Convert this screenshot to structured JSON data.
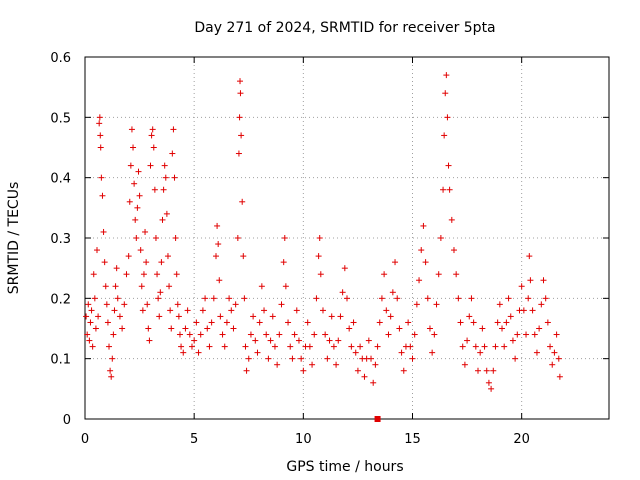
{
  "chart_data": {
    "type": "scatter",
    "title": "Day 271 of 2024, SRMTID for receiver 5pta",
    "xlabel": "GPS time / hours",
    "ylabel": "SRMTID / TECUs",
    "xlim": [
      0,
      24
    ],
    "ylim": [
      0,
      0.6
    ],
    "xticks": [
      0,
      5,
      10,
      15,
      20
    ],
    "xtick_labels": [
      "0",
      "5",
      "10",
      "15",
      "20"
    ],
    "yticks": [
      0,
      0.1,
      0.2,
      0.3,
      0.4,
      0.5,
      0.6
    ],
    "ytick_labels": [
      "0",
      "0.1",
      "0.2",
      "0.3",
      "0.4",
      "0.5",
      "0.6"
    ],
    "grid": true,
    "marker": "+",
    "color": "#e00000",
    "series": [
      {
        "name": "SRMTID",
        "points": [
          [
            0.05,
            0.17
          ],
          [
            0.1,
            0.14
          ],
          [
            0.15,
            0.19
          ],
          [
            0.2,
            0.13
          ],
          [
            0.25,
            0.16
          ],
          [
            0.3,
            0.18
          ],
          [
            0.35,
            0.12
          ],
          [
            0.4,
            0.24
          ],
          [
            0.45,
            0.2
          ],
          [
            0.5,
            0.15
          ],
          [
            0.55,
            0.28
          ],
          [
            0.6,
            0.17
          ],
          [
            0.65,
            0.49
          ],
          [
            0.68,
            0.5
          ],
          [
            0.7,
            0.47
          ],
          [
            0.72,
            0.45
          ],
          [
            0.75,
            0.4
          ],
          [
            0.8,
            0.37
          ],
          [
            0.85,
            0.31
          ],
          [
            0.9,
            0.26
          ],
          [
            0.95,
            0.22
          ],
          [
            1.0,
            0.19
          ],
          [
            1.05,
            0.16
          ],
          [
            1.1,
            0.12
          ],
          [
            1.15,
            0.08
          ],
          [
            1.2,
            0.07
          ],
          [
            1.25,
            0.1
          ],
          [
            1.3,
            0.14
          ],
          [
            1.35,
            0.18
          ],
          [
            1.4,
            0.22
          ],
          [
            1.45,
            0.25
          ],
          [
            1.5,
            0.2
          ],
          [
            1.6,
            0.17
          ],
          [
            1.7,
            0.15
          ],
          [
            1.8,
            0.19
          ],
          [
            1.9,
            0.24
          ],
          [
            2.0,
            0.27
          ],
          [
            2.05,
            0.36
          ],
          [
            2.1,
            0.42
          ],
          [
            2.15,
            0.48
          ],
          [
            2.2,
            0.45
          ],
          [
            2.25,
            0.39
          ],
          [
            2.3,
            0.33
          ],
          [
            2.35,
            0.3
          ],
          [
            2.4,
            0.35
          ],
          [
            2.45,
            0.41
          ],
          [
            2.5,
            0.37
          ],
          [
            2.55,
            0.28
          ],
          [
            2.6,
            0.22
          ],
          [
            2.65,
            0.18
          ],
          [
            2.7,
            0.24
          ],
          [
            2.75,
            0.31
          ],
          [
            2.8,
            0.26
          ],
          [
            2.85,
            0.19
          ],
          [
            2.9,
            0.15
          ],
          [
            2.95,
            0.13
          ],
          [
            3.0,
            0.42
          ],
          [
            3.05,
            0.47
          ],
          [
            3.1,
            0.48
          ],
          [
            3.15,
            0.45
          ],
          [
            3.2,
            0.38
          ],
          [
            3.25,
            0.3
          ],
          [
            3.3,
            0.24
          ],
          [
            3.35,
            0.2
          ],
          [
            3.4,
            0.17
          ],
          [
            3.45,
            0.21
          ],
          [
            3.5,
            0.26
          ],
          [
            3.55,
            0.33
          ],
          [
            3.6,
            0.38
          ],
          [
            3.65,
            0.42
          ],
          [
            3.7,
            0.4
          ],
          [
            3.75,
            0.34
          ],
          [
            3.8,
            0.27
          ],
          [
            3.85,
            0.22
          ],
          [
            3.9,
            0.18
          ],
          [
            3.95,
            0.15
          ],
          [
            4.0,
            0.44
          ],
          [
            4.05,
            0.48
          ],
          [
            4.1,
            0.4
          ],
          [
            4.15,
            0.3
          ],
          [
            4.2,
            0.24
          ],
          [
            4.25,
            0.19
          ],
          [
            4.3,
            0.17
          ],
          [
            4.35,
            0.14
          ],
          [
            4.4,
            0.12
          ],
          [
            4.5,
            0.11
          ],
          [
            4.6,
            0.15
          ],
          [
            4.7,
            0.18
          ],
          [
            4.8,
            0.14
          ],
          [
            4.9,
            0.12
          ],
          [
            5.0,
            0.13
          ],
          [
            5.1,
            0.16
          ],
          [
            5.2,
            0.11
          ],
          [
            5.3,
            0.14
          ],
          [
            5.4,
            0.18
          ],
          [
            5.5,
            0.2
          ],
          [
            5.6,
            0.15
          ],
          [
            5.7,
            0.12
          ],
          [
            5.8,
            0.16
          ],
          [
            5.9,
            0.2
          ],
          [
            6.0,
            0.27
          ],
          [
            6.05,
            0.32
          ],
          [
            6.1,
            0.29
          ],
          [
            6.15,
            0.23
          ],
          [
            6.2,
            0.17
          ],
          [
            6.3,
            0.14
          ],
          [
            6.4,
            0.12
          ],
          [
            6.5,
            0.16
          ],
          [
            6.6,
            0.2
          ],
          [
            6.7,
            0.18
          ],
          [
            6.8,
            0.15
          ],
          [
            6.9,
            0.19
          ],
          [
            7.0,
            0.3
          ],
          [
            7.05,
            0.44
          ],
          [
            7.08,
            0.5
          ],
          [
            7.1,
            0.56
          ],
          [
            7.12,
            0.54
          ],
          [
            7.15,
            0.47
          ],
          [
            7.2,
            0.36
          ],
          [
            7.25,
            0.27
          ],
          [
            7.3,
            0.2
          ],
          [
            7.35,
            0.12
          ],
          [
            7.4,
            0.08
          ],
          [
            7.5,
            0.1
          ],
          [
            7.6,
            0.14
          ],
          [
            7.7,
            0.17
          ],
          [
            7.8,
            0.13
          ],
          [
            7.9,
            0.11
          ],
          [
            8.0,
            0.16
          ],
          [
            8.1,
            0.22
          ],
          [
            8.2,
            0.18
          ],
          [
            8.3,
            0.14
          ],
          [
            8.4,
            0.1
          ],
          [
            8.5,
            0.13
          ],
          [
            8.6,
            0.17
          ],
          [
            8.7,
            0.12
          ],
          [
            8.8,
            0.09
          ],
          [
            8.9,
            0.14
          ],
          [
            9.0,
            0.19
          ],
          [
            9.1,
            0.26
          ],
          [
            9.15,
            0.3
          ],
          [
            9.2,
            0.22
          ],
          [
            9.3,
            0.16
          ],
          [
            9.4,
            0.12
          ],
          [
            9.5,
            0.1
          ],
          [
            9.6,
            0.14
          ],
          [
            9.7,
            0.18
          ],
          [
            9.8,
            0.13
          ],
          [
            9.9,
            0.1
          ],
          [
            10.0,
            0.08
          ],
          [
            10.1,
            0.12
          ],
          [
            10.2,
            0.16
          ],
          [
            10.3,
            0.12
          ],
          [
            10.4,
            0.09
          ],
          [
            10.5,
            0.14
          ],
          [
            10.6,
            0.2
          ],
          [
            10.7,
            0.27
          ],
          [
            10.75,
            0.3
          ],
          [
            10.8,
            0.24
          ],
          [
            10.9,
            0.18
          ],
          [
            11.0,
            0.14
          ],
          [
            11.1,
            0.1
          ],
          [
            11.2,
            0.13
          ],
          [
            11.3,
            0.17
          ],
          [
            11.4,
            0.12
          ],
          [
            11.5,
            0.09
          ],
          [
            11.6,
            0.13
          ],
          [
            11.7,
            0.17
          ],
          [
            11.8,
            0.21
          ],
          [
            11.9,
            0.25
          ],
          [
            12.0,
            0.2
          ],
          [
            12.1,
            0.15
          ],
          [
            12.2,
            0.12
          ],
          [
            12.3,
            0.16
          ],
          [
            12.4,
            0.11
          ],
          [
            12.5,
            0.08
          ],
          [
            12.6,
            0.12
          ],
          [
            12.7,
            0.1
          ],
          [
            12.8,
            0.07
          ],
          [
            12.9,
            0.1
          ],
          [
            13.0,
            0.13
          ],
          [
            13.1,
            0.1
          ],
          [
            13.2,
            0.06
          ],
          [
            13.3,
            0.09
          ],
          [
            13.4,
            0.12
          ],
          [
            13.5,
            0.16
          ],
          [
            13.6,
            0.2
          ],
          [
            13.7,
            0.24
          ],
          [
            13.8,
            0.18
          ],
          [
            13.9,
            0.14
          ],
          [
            14.0,
            0.17
          ],
          [
            14.1,
            0.21
          ],
          [
            14.2,
            0.26
          ],
          [
            14.3,
            0.2
          ],
          [
            14.4,
            0.15
          ],
          [
            14.5,
            0.11
          ],
          [
            14.6,
            0.08
          ],
          [
            14.7,
            0.12
          ],
          [
            14.8,
            0.16
          ],
          [
            14.9,
            0.12
          ],
          [
            15.0,
            0.1
          ],
          [
            15.1,
            0.14
          ],
          [
            15.2,
            0.19
          ],
          [
            15.3,
            0.23
          ],
          [
            15.4,
            0.28
          ],
          [
            15.5,
            0.32
          ],
          [
            15.6,
            0.26
          ],
          [
            15.7,
            0.2
          ],
          [
            15.8,
            0.15
          ],
          [
            15.9,
            0.11
          ],
          [
            16.0,
            0.14
          ],
          [
            16.1,
            0.19
          ],
          [
            16.2,
            0.24
          ],
          [
            16.3,
            0.3
          ],
          [
            16.4,
            0.38
          ],
          [
            16.45,
            0.47
          ],
          [
            16.5,
            0.54
          ],
          [
            16.55,
            0.57
          ],
          [
            16.6,
            0.5
          ],
          [
            16.65,
            0.42
          ],
          [
            16.7,
            0.38
          ],
          [
            16.8,
            0.33
          ],
          [
            16.9,
            0.28
          ],
          [
            17.0,
            0.24
          ],
          [
            17.1,
            0.2
          ],
          [
            17.2,
            0.16
          ],
          [
            17.3,
            0.12
          ],
          [
            17.4,
            0.09
          ],
          [
            17.5,
            0.13
          ],
          [
            17.6,
            0.17
          ],
          [
            17.7,
            0.2
          ],
          [
            17.8,
            0.16
          ],
          [
            17.9,
            0.12
          ],
          [
            18.0,
            0.08
          ],
          [
            18.1,
            0.11
          ],
          [
            18.2,
            0.15
          ],
          [
            18.3,
            0.12
          ],
          [
            18.4,
            0.08
          ],
          [
            18.5,
            0.06
          ],
          [
            18.6,
            0.05
          ],
          [
            18.7,
            0.08
          ],
          [
            18.8,
            0.12
          ],
          [
            18.9,
            0.16
          ],
          [
            19.0,
            0.19
          ],
          [
            19.1,
            0.15
          ],
          [
            19.2,
            0.12
          ],
          [
            19.3,
            0.16
          ],
          [
            19.4,
            0.2
          ],
          [
            19.5,
            0.17
          ],
          [
            19.6,
            0.13
          ],
          [
            19.7,
            0.1
          ],
          [
            19.8,
            0.14
          ],
          [
            19.9,
            0.18
          ],
          [
            20.0,
            0.22
          ],
          [
            20.1,
            0.18
          ],
          [
            20.2,
            0.14
          ],
          [
            20.3,
            0.2
          ],
          [
            20.35,
            0.27
          ],
          [
            20.4,
            0.23
          ],
          [
            20.5,
            0.18
          ],
          [
            20.6,
            0.14
          ],
          [
            20.7,
            0.11
          ],
          [
            20.8,
            0.15
          ],
          [
            20.9,
            0.19
          ],
          [
            21.0,
            0.23
          ],
          [
            21.1,
            0.2
          ],
          [
            21.2,
            0.16
          ],
          [
            21.3,
            0.12
          ],
          [
            21.4,
            0.09
          ],
          [
            21.5,
            0.11
          ],
          [
            21.6,
            0.14
          ],
          [
            21.7,
            0.1
          ],
          [
            21.75,
            0.07
          ]
        ]
      }
    ],
    "marker_square": [
      13.4,
      0.0
    ]
  }
}
